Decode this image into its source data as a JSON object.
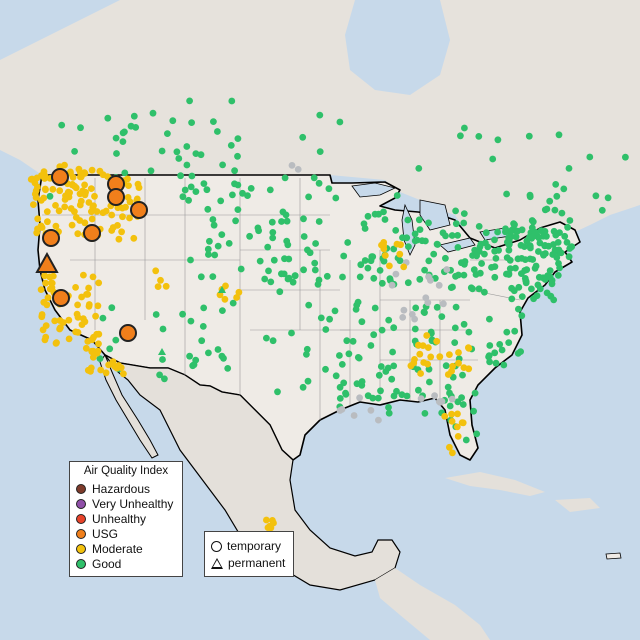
{
  "legend": {
    "title": "Air Quality Index",
    "categories": [
      {
        "label": "Hazardous",
        "color": "#7e3b2b"
      },
      {
        "label": "Very Unhealthy",
        "color": "#8f4fa8"
      },
      {
        "label": "Unhealthy",
        "color": "#e8432a"
      },
      {
        "label": "USG",
        "color": "#f07f1b"
      },
      {
        "label": "Moderate",
        "color": "#f3c10d"
      },
      {
        "label": "Good",
        "color": "#2fc06a"
      }
    ],
    "no_data_color": "#b9bcc0"
  },
  "type_legend": {
    "items": [
      {
        "label": "temporary",
        "shape": "circle"
      },
      {
        "label": "permanent",
        "shape": "triangle"
      }
    ]
  },
  "colors": {
    "ocean": "#c7d9ea",
    "land": "#ede9e3",
    "land_foreign": "#e4e0da",
    "border": "#000000",
    "state_line": "#9a9a9a"
  }
}
